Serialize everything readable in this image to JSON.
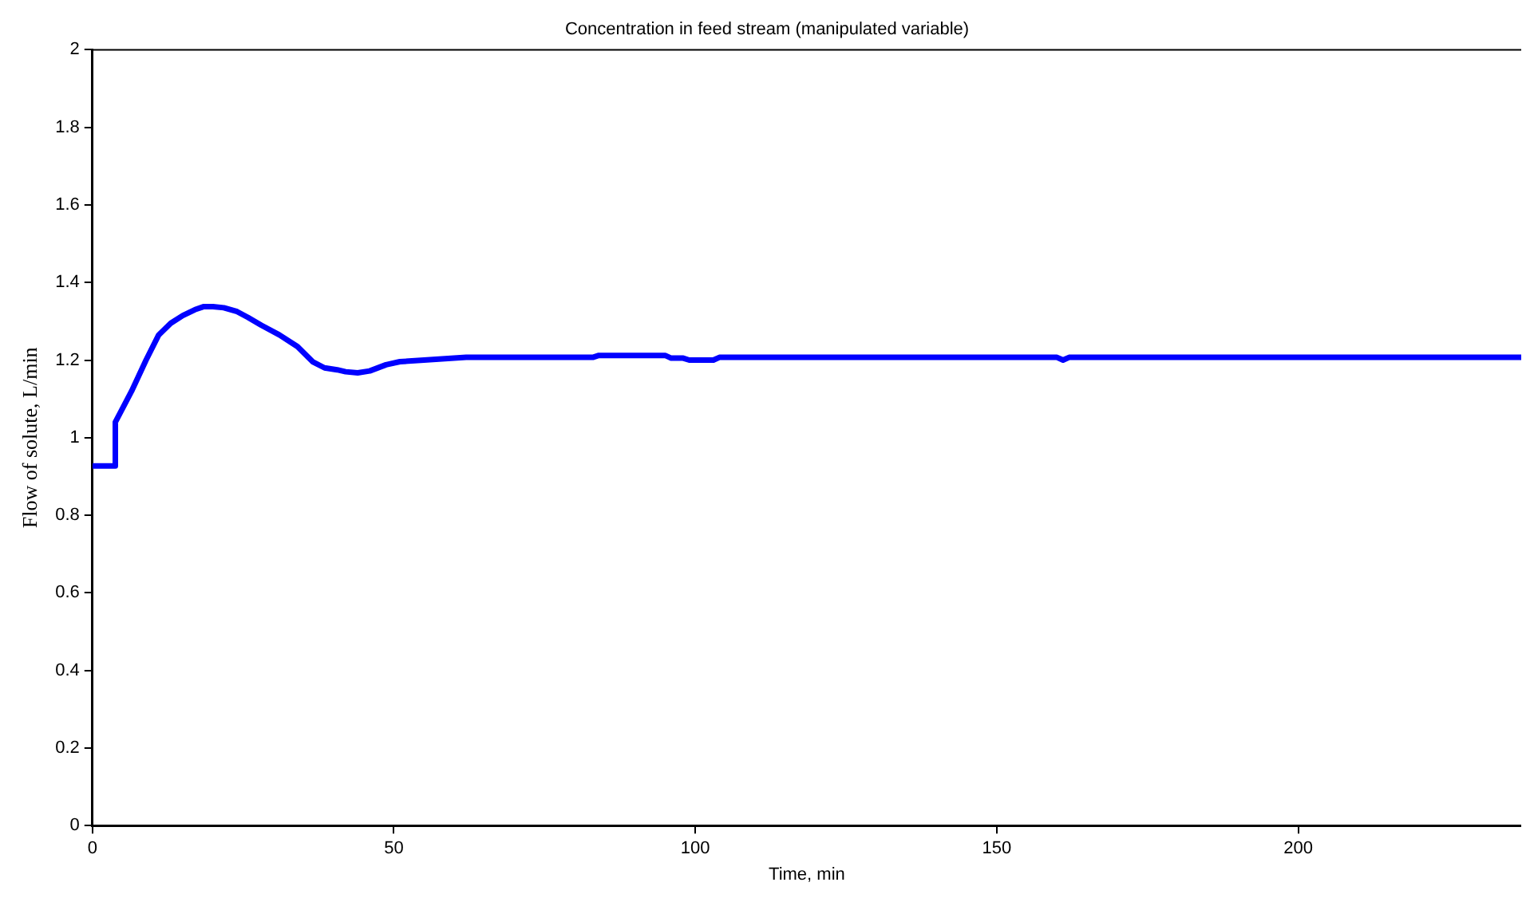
{
  "chart_data": {
    "type": "line",
    "title": "Concentration in feed stream (manipulated variable)",
    "xlabel": "Time, min",
    "ylabel": "Flow of solute, L/min",
    "x": [
      0,
      3.8,
      3.8,
      6.5,
      8.9,
      11,
      13,
      15,
      17,
      18.5,
      20,
      21.8,
      24,
      25.8,
      28,
      31,
      34,
      36.6,
      38.5,
      40.6,
      42,
      44,
      46,
      48.7,
      51,
      55,
      59,
      62,
      70,
      83,
      84,
      95,
      96,
      98,
      99,
      103,
      104,
      160,
      161,
      162,
      237
    ],
    "series": [
      {
        "color": "#0000ff",
        "values": [
          0.927,
          0.927,
          1.04,
          1.12,
          1.2,
          1.265,
          1.295,
          1.315,
          1.33,
          1.338,
          1.338,
          1.335,
          1.325,
          1.31,
          1.29,
          1.265,
          1.235,
          1.195,
          1.18,
          1.175,
          1.17,
          1.167,
          1.172,
          1.188,
          1.196,
          1.2,
          1.204,
          1.207,
          1.207,
          1.207,
          1.212,
          1.212,
          1.205,
          1.205,
          1.2,
          1.2,
          1.207,
          1.207,
          1.2,
          1.207,
          1.207
        ]
      }
    ],
    "xlim": [
      0,
      237
    ],
    "xticks": [
      0,
      50,
      100,
      150,
      200
    ],
    "ylim": [
      0,
      2
    ],
    "yticks": [
      0,
      0.2,
      0.4,
      0.6,
      0.8,
      1,
      1.2,
      1.4,
      1.6,
      1.8,
      2
    ],
    "grid": false,
    "legend": false,
    "marker": "none",
    "line_style": "solid"
  }
}
